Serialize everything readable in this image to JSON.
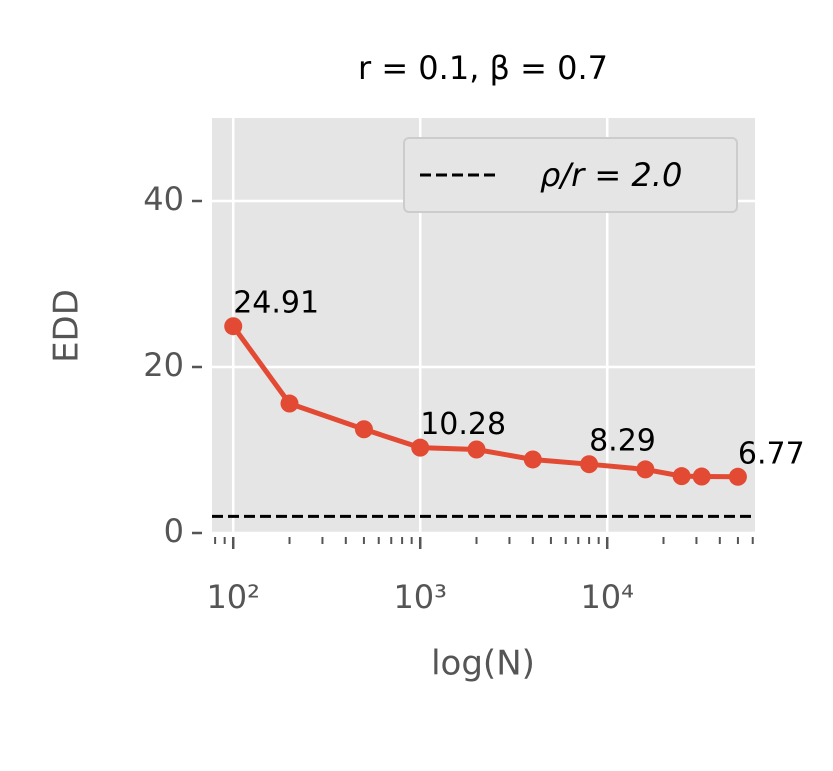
{
  "chart_data": {
    "type": "line",
    "title": "r = 0.1, β = 0.7",
    "xlabel": "log(N)",
    "ylabel": "EDD",
    "x": [
      100,
      200,
      500,
      1000,
      2000,
      4000,
      8000,
      16000,
      25000,
      32000,
      50000
    ],
    "series": [
      {
        "name": null,
        "color": "#e24a33",
        "values": [
          24.91,
          15.6,
          12.5,
          10.28,
          10.06,
          8.86,
          8.29,
          7.66,
          6.85,
          6.8,
          6.77
        ],
        "value_labels": [
          "24.91",
          null,
          null,
          "10.28",
          null,
          null,
          "8.29",
          null,
          null,
          null,
          "6.77"
        ]
      }
    ],
    "hlines": [
      {
        "y": 2.0,
        "label": "ρ/r = 2.0",
        "color": "#000000",
        "style": "dashed"
      }
    ],
    "xscale": "log",
    "xlim": [
      77,
      61700
    ],
    "ylim": [
      0,
      50
    ],
    "xticks": [
      {
        "value": 100,
        "label": "10²"
      },
      {
        "value": 1000,
        "label": "10³"
      },
      {
        "value": 10000,
        "label": "10⁴"
      }
    ],
    "xminorticks": [
      80,
      90,
      200,
      300,
      400,
      500,
      600,
      700,
      800,
      900,
      2000,
      3000,
      4000,
      5000,
      6000,
      7000,
      8000,
      9000,
      20000,
      30000,
      40000,
      50000,
      60000
    ],
    "yticks": [
      0,
      20,
      40
    ],
    "grid": true,
    "legend": "upper right"
  }
}
